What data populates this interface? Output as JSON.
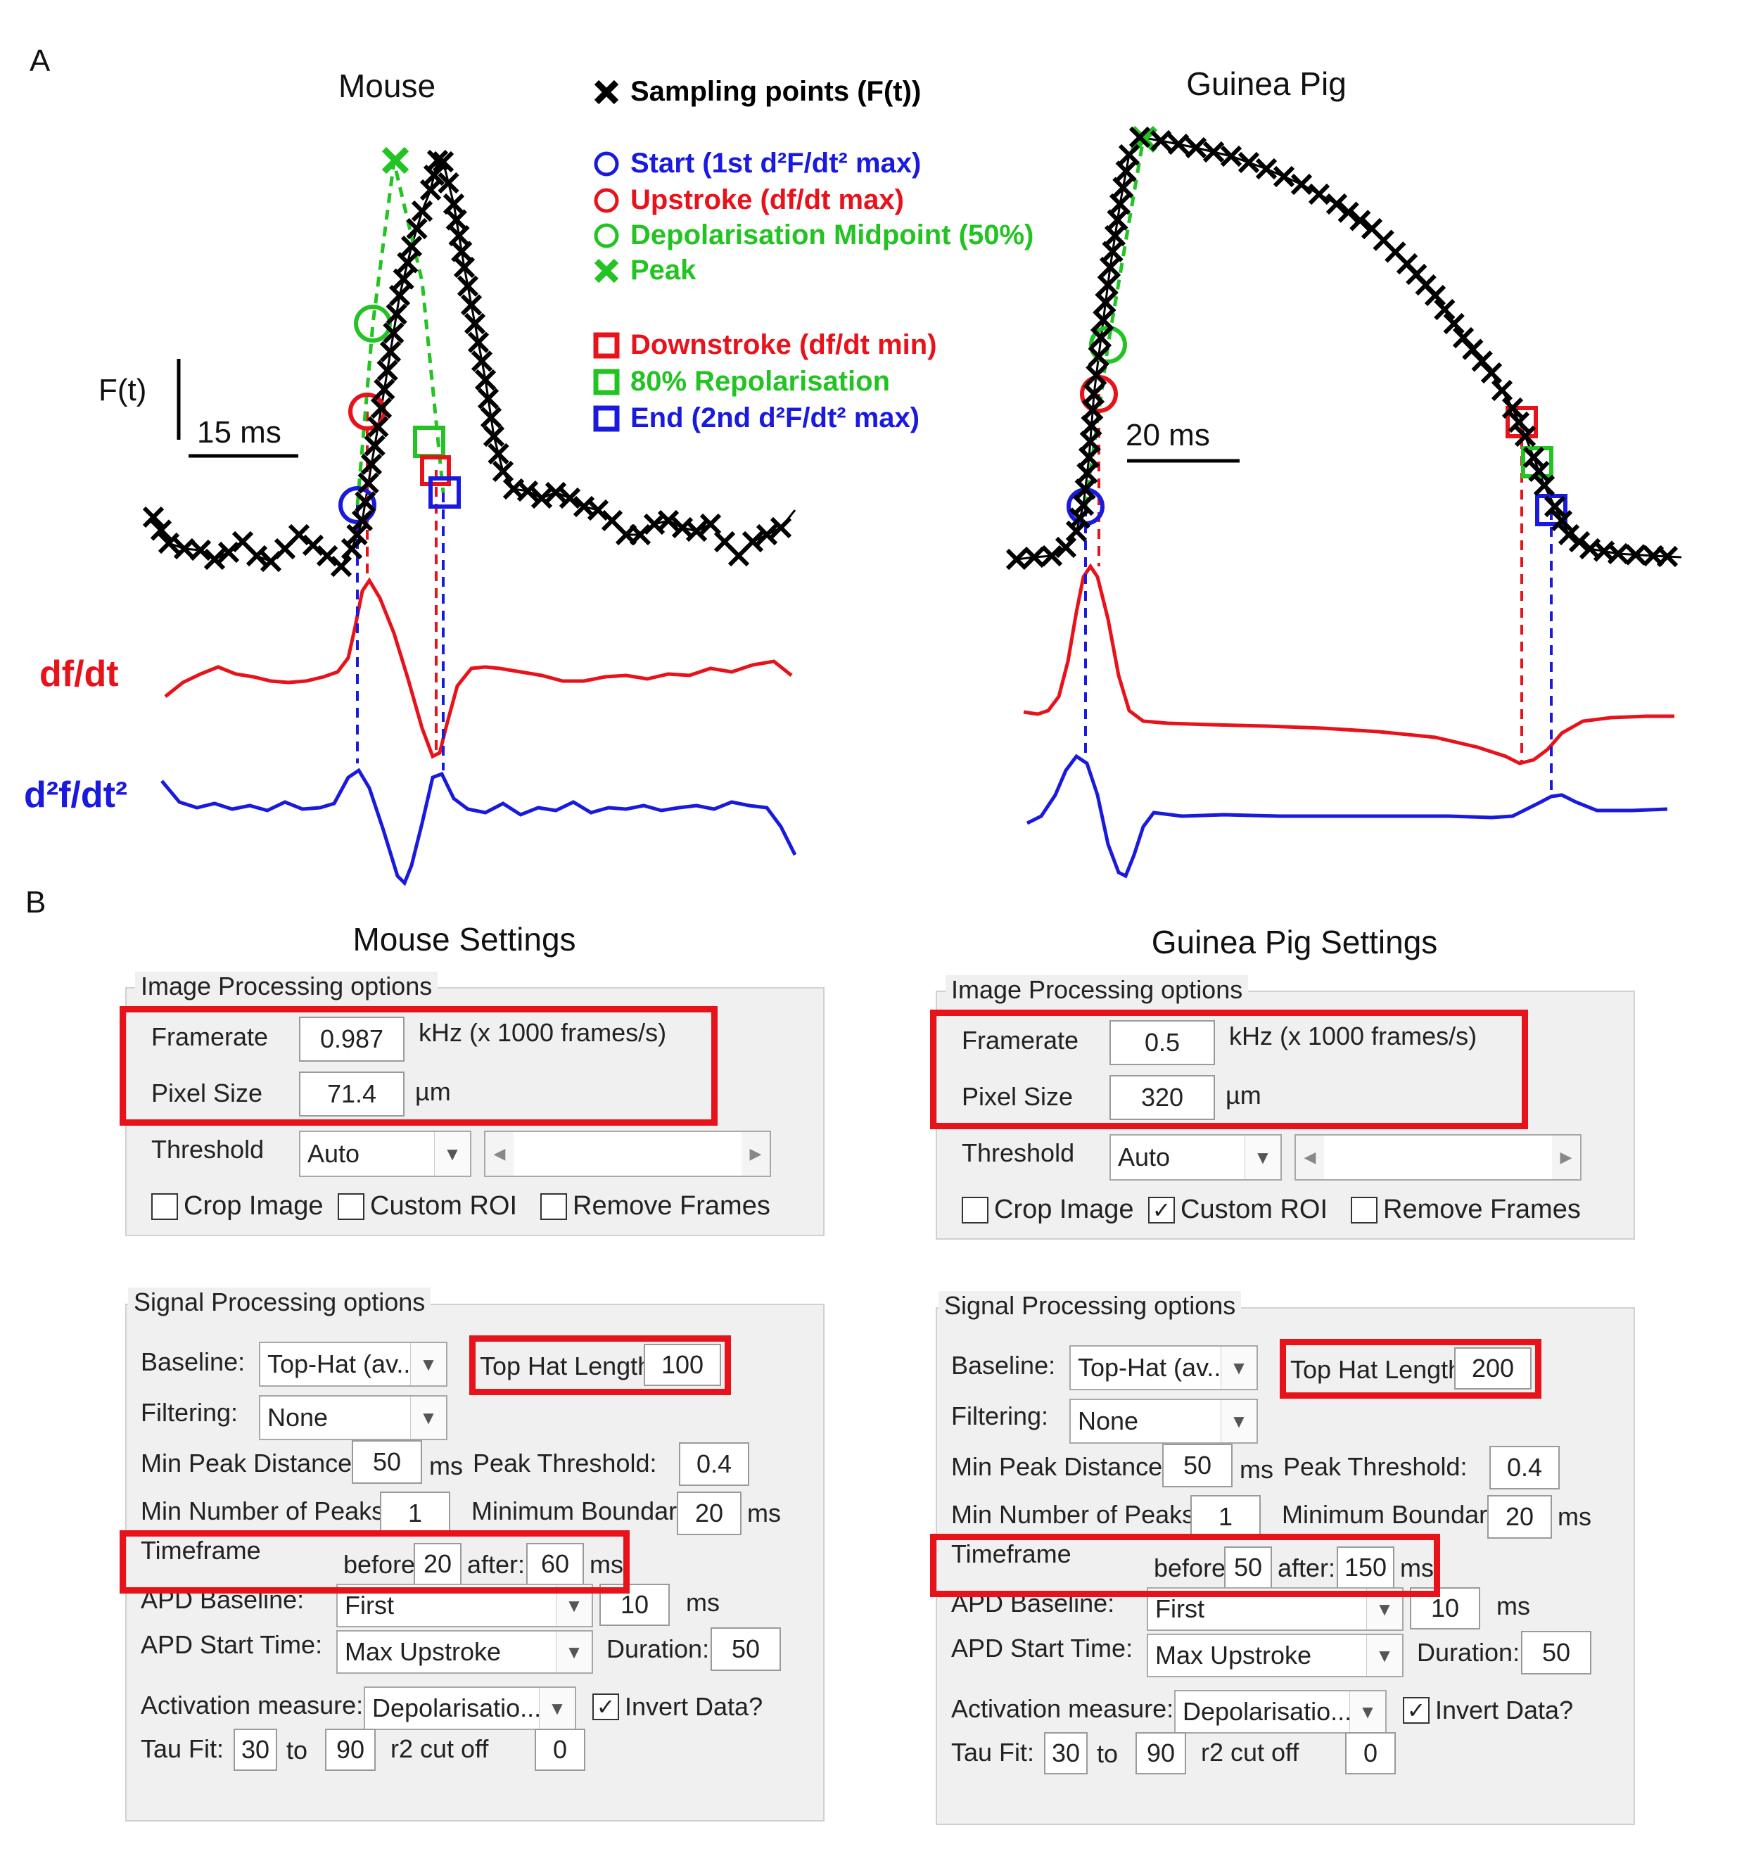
{
  "figure": {
    "panel_a": "A",
    "panel_b": "B",
    "mouse_title": "Mouse",
    "guinea_title": "Guinea Pig",
    "y_axis_label": "F(t)",
    "mouse_scale": "15 ms",
    "guinea_scale": "20 ms",
    "dfdt_label": "df/dt",
    "d2fdt2_label": "d²f/dt²",
    "legend": [
      {
        "name": "sampling-points",
        "text": "Sampling points (F(t))",
        "color": "#000000",
        "marker": "x-icon"
      },
      {
        "name": "start",
        "text": "Start (1st d²F/dt² max)",
        "color": "#1a1adf",
        "marker": "circle-icon"
      },
      {
        "name": "upstroke",
        "text": "Upstroke (df/dt  max)",
        "color": "#e8121b",
        "marker": "circle-icon"
      },
      {
        "name": "depol-midpoint",
        "text": "Depolarisation Midpoint (50%)",
        "color": "#22c322",
        "marker": "circle-icon"
      },
      {
        "name": "peak",
        "text": "Peak",
        "color": "#22c322",
        "marker": "x-icon"
      },
      {
        "name": "downstroke",
        "text": "Downstroke (df/dt min)",
        "color": "#e8121b",
        "marker": "square-icon"
      },
      {
        "name": "repol80",
        "text": "80% Repolarisation",
        "color": "#22c322",
        "marker": "square-icon"
      },
      {
        "name": "end",
        "text": "End (2nd d²F/dt² max)",
        "color": "#1a1adf",
        "marker": "square-icon"
      }
    ],
    "colors": {
      "red": "#e8121b",
      "blue": "#1a1adf",
      "green": "#22c322",
      "highlight": "#e8121b"
    }
  },
  "mouse_settings": {
    "title": "Mouse Settings",
    "image_group": "Image Processing options",
    "framerate_label": "Framerate",
    "framerate_value": "0.987",
    "framerate_unit": "kHz (x 1000 frames/s)",
    "pixel_label": "Pixel Size",
    "pixel_value": "71.4",
    "pixel_unit": "µm",
    "threshold_label": "Threshold",
    "threshold_value": "Auto",
    "crop_label": "Crop Image",
    "crop_checked": false,
    "roi_label": "Custom ROI",
    "roi_checked": false,
    "remove_label": "Remove Frames",
    "remove_checked": false,
    "signal_group": "Signal Processing options",
    "baseline_label": "Baseline:",
    "baseline_value": "Top-Hat (av...",
    "tophat_label": "Top Hat Length",
    "tophat_value": "100",
    "filtering_label": "Filtering:",
    "filtering_value": "None",
    "minpeak_label": "Min Peak Distance",
    "minpeak_value": "50",
    "minpeak_unit": "ms",
    "peakthr_label": "Peak Threshold:",
    "peakthr_value": "0.4",
    "minnum_label": "Min Number of Peaks",
    "minnum_value": "1",
    "minbound_label": "Minimum Boundary",
    "minbound_value": "20",
    "minbound_unit": "ms",
    "timeframe_label": "Timeframe",
    "before_label": "before:",
    "before_value": "20",
    "after_label": "after:",
    "after_value": "60",
    "after_unit": "ms",
    "apdbase_label": "APD Baseline:",
    "apdbase_value": "First",
    "apdbase_num": "10",
    "apdbase_unit": "ms",
    "apdstart_label": "APD Start Time:",
    "apdstart_value": "Max Upstroke",
    "duration_label": "Duration:",
    "duration_value": "50",
    "activation_label": "Activation measure:",
    "activation_value": "Depolarisatio...",
    "invert_label": "Invert Data?",
    "invert_checked": true,
    "taufit_label": "Tau Fit:",
    "taufit_from": "30",
    "to_label": "to",
    "taufit_to": "90",
    "r2_label": "r2 cut off",
    "r2_value": "0"
  },
  "guinea_settings": {
    "title": "Guinea Pig Settings",
    "image_group": "Image Processing options",
    "framerate_label": "Framerate",
    "framerate_value": "0.5",
    "framerate_unit": "kHz (x 1000 frames/s)",
    "pixel_label": "Pixel Size",
    "pixel_value": "320",
    "pixel_unit": "µm",
    "threshold_label": "Threshold",
    "threshold_value": "Auto",
    "crop_label": "Crop Image",
    "crop_checked": false,
    "roi_label": "Custom ROI",
    "roi_checked": true,
    "remove_label": "Remove Frames",
    "remove_checked": false,
    "signal_group": "Signal Processing options",
    "baseline_label": "Baseline:",
    "baseline_value": "Top-Hat (av...",
    "tophat_label": "Top Hat Length",
    "tophat_value": "200",
    "filtering_label": "Filtering:",
    "filtering_value": "None",
    "minpeak_label": "Min Peak Distance",
    "minpeak_value": "50",
    "minpeak_unit": "ms",
    "peakthr_label": "Peak Threshold:",
    "peakthr_value": "0.4",
    "minnum_label": "Min Number of Peaks",
    "minnum_value": "1",
    "minbound_label": "Minimum Boundary",
    "minbound_value": "20",
    "minbound_unit": "ms",
    "timeframe_label": "Timeframe",
    "before_label": "before:",
    "before_value": "50",
    "after_label": "after:",
    "after_value": "150",
    "after_unit": "ms",
    "apdbase_label": "APD Baseline:",
    "apdbase_value": "First",
    "apdbase_num": "10",
    "apdbase_unit": "ms",
    "apdstart_label": "APD Start Time:",
    "apdstart_value": "Max Upstroke",
    "duration_label": "Duration:",
    "duration_value": "50",
    "activation_label": "Activation measure:",
    "activation_value": "Depolarisatio...",
    "invert_label": "Invert Data?",
    "invert_checked": true,
    "taufit_label": "Tau Fit:",
    "taufit_from": "30",
    "to_label": "to",
    "taufit_to": "90",
    "r2_label": "r2 cut off",
    "r2_value": "0"
  }
}
